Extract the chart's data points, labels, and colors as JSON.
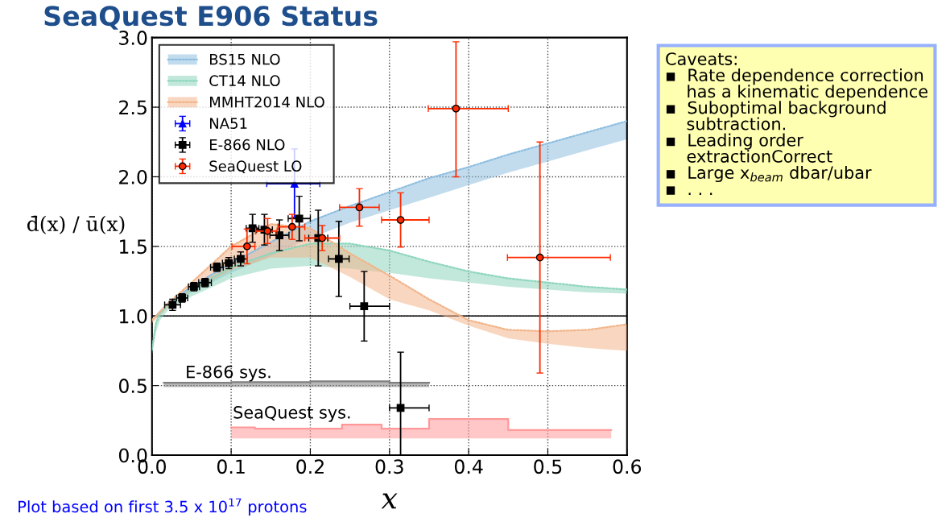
{
  "chart_data": {
    "type": "scatter",
    "title": "SeaQuest E906 Status",
    "xlabel": "x",
    "ylabel": "d̄(x) / ū(x)",
    "xlim": [
      0.0,
      0.6
    ],
    "ylim": [
      0.0,
      3.0
    ],
    "xticks": [
      {
        "value": 0.0,
        "label": "0.0"
      },
      {
        "value": 0.1,
        "label": "0.1"
      },
      {
        "value": 0.2,
        "label": "0.2"
      },
      {
        "value": 0.3,
        "label": "0.3"
      },
      {
        "value": 0.4,
        "label": "0.4"
      },
      {
        "value": 0.5,
        "label": "0.5"
      },
      {
        "value": 0.6,
        "label": "0.6"
      }
    ],
    "yticks": [
      {
        "value": 0.0,
        "label": "0.0"
      },
      {
        "value": 0.5,
        "label": "0.5"
      },
      {
        "value": 1.0,
        "label": "1.0"
      },
      {
        "value": 1.5,
        "label": "1.5"
      },
      {
        "value": 2.0,
        "label": "2.0"
      },
      {
        "value": 2.5,
        "label": "2.5"
      },
      {
        "value": 3.0,
        "label": "3.0"
      }
    ],
    "grid": true,
    "legend": "top left",
    "ref_lines": [
      {
        "axis": "y",
        "value": 1.0,
        "color": "#000000",
        "line_style": "solid"
      }
    ],
    "series": [
      {
        "type": "line",
        "name": "BS15 NLO",
        "color": "#8fbfe0",
        "line_style": "dotted",
        "x": [
          0.005,
          0.02,
          0.05,
          0.1,
          0.15,
          0.2,
          0.25,
          0.3,
          0.35,
          0.4,
          0.45,
          0.5,
          0.55,
          0.6
        ],
        "lower": [
          0.98,
          1.07,
          1.17,
          1.31,
          1.43,
          1.56,
          1.67,
          1.76,
          1.85,
          1.94,
          2.03,
          2.11,
          2.19,
          2.27
        ],
        "upper": [
          1.0,
          1.09,
          1.21,
          1.38,
          1.53,
          1.68,
          1.79,
          1.89,
          1.99,
          2.07,
          2.16,
          2.24,
          2.32,
          2.4
        ],
        "values": [
          1.0,
          1.09,
          1.21,
          1.38,
          1.53,
          1.68,
          1.79,
          1.89,
          1.99,
          2.07,
          2.16,
          2.24,
          2.32,
          2.4
        ]
      },
      {
        "type": "line",
        "name": "CT14 NLO",
        "color": "#8fd6bd",
        "line_style": "dotted",
        "x": [
          0.0,
          0.005,
          0.01,
          0.02,
          0.05,
          0.1,
          0.15,
          0.2,
          0.25,
          0.3,
          0.35,
          0.4,
          0.45,
          0.5,
          0.55,
          0.6
        ],
        "lower": [
          0.72,
          0.88,
          0.97,
          1.04,
          1.14,
          1.27,
          1.34,
          1.36,
          1.34,
          1.31,
          1.27,
          1.24,
          1.21,
          1.19,
          1.17,
          1.16
        ],
        "upper": [
          0.76,
          0.95,
          1.02,
          1.08,
          1.19,
          1.35,
          1.45,
          1.52,
          1.52,
          1.47,
          1.39,
          1.32,
          1.27,
          1.24,
          1.21,
          1.19
        ],
        "values": [
          0.76,
          0.95,
          1.02,
          1.08,
          1.19,
          1.35,
          1.45,
          1.52,
          1.52,
          1.47,
          1.39,
          1.32,
          1.27,
          1.24,
          1.21,
          1.19
        ]
      },
      {
        "type": "line",
        "name": "MMHT2014 NLO",
        "color": "#f2b58a",
        "line_style": "dotted",
        "x": [
          0.0,
          0.02,
          0.05,
          0.1,
          0.15,
          0.2,
          0.25,
          0.3,
          0.35,
          0.4,
          0.45,
          0.5,
          0.55,
          0.6
        ],
        "lower": [
          0.95,
          1.06,
          1.18,
          1.33,
          1.42,
          1.42,
          1.28,
          1.12,
          1.04,
          0.93,
          0.84,
          0.8,
          0.77,
          0.75
        ],
        "upper": [
          0.97,
          1.09,
          1.24,
          1.5,
          1.66,
          1.63,
          1.45,
          1.29,
          1.12,
          0.97,
          0.9,
          0.89,
          0.9,
          0.94
        ],
        "values": [
          0.97,
          1.09,
          1.24,
          1.5,
          1.66,
          1.63,
          1.45,
          1.29,
          1.12,
          0.97,
          0.9,
          0.89,
          0.9,
          0.94
        ]
      },
      {
        "type": "line",
        "color": "#808080",
        "line_style": "solid",
        "x": [
          0.015,
          0.1,
          0.1,
          0.2,
          0.2,
          0.3,
          0.3,
          0.35
        ],
        "lower": [
          0.49,
          0.49,
          0.49,
          0.49,
          0.49,
          0.49,
          0.49,
          0.49
        ],
        "upper": [
          0.52,
          0.52,
          0.525,
          0.525,
          0.53,
          0.53,
          0.52,
          0.52
        ],
        "values": [
          0.52,
          0.52,
          0.525,
          0.525,
          0.53,
          0.53,
          0.52,
          0.52
        ]
      },
      {
        "type": "line",
        "color": "#ff9999",
        "line_style": "solid",
        "x": [
          0.1,
          0.13,
          0.13,
          0.24,
          0.24,
          0.29,
          0.29,
          0.35,
          0.35,
          0.45,
          0.45,
          0.58
        ],
        "lower": [
          0.12,
          0.12,
          0.12,
          0.12,
          0.12,
          0.12,
          0.12,
          0.12,
          0.12,
          0.12,
          0.12,
          0.12
        ],
        "upper": [
          0.2,
          0.2,
          0.19,
          0.19,
          0.22,
          0.22,
          0.19,
          0.19,
          0.26,
          0.26,
          0.18,
          0.18
        ],
        "values": [
          0.2,
          0.2,
          0.19,
          0.19,
          0.22,
          0.22,
          0.19,
          0.19,
          0.26,
          0.26,
          0.18,
          0.18
        ]
      },
      {
        "name": "NA51",
        "color": "#0000ff",
        "marker": "triangle",
        "x": [
          0.18
        ],
        "values": [
          1.95
        ],
        "errors": [
          [
            1.71,
            2.2
          ]
        ],
        "xerrors": [
          [
            0.145,
            0.212
          ]
        ]
      },
      {
        "name": "E-866 NLO",
        "color": "#000000",
        "marker": "square",
        "x": [
          0.026,
          0.038,
          0.053,
          0.067,
          0.082,
          0.097,
          0.112,
          0.127,
          0.142,
          0.161,
          0.186,
          0.21,
          0.236,
          0.268,
          0.314
        ],
        "values": [
          1.08,
          1.13,
          1.21,
          1.24,
          1.35,
          1.38,
          1.41,
          1.63,
          1.62,
          1.58,
          1.7,
          1.56,
          1.41,
          1.07,
          0.34
        ],
        "errors": [
          0.04,
          0.03,
          0.03,
          0.03,
          0.03,
          0.04,
          0.05,
          0.1,
          0.11,
          0.11,
          0.16,
          0.2,
          0.27,
          0.25,
          [
            0.0,
            0.74
          ]
        ],
        "xerrors": [
          0.01,
          0.007,
          0.007,
          0.008,
          0.008,
          0.008,
          0.008,
          0.008,
          0.01,
          0.012,
          0.014,
          0.012,
          0.013,
          [
            0.25,
            0.3
          ],
          [
            0.3,
            0.35
          ]
        ]
      },
      {
        "name": "SeaQuest LO",
        "color": "#ff2a00",
        "marker": "circle",
        "x": [
          0.12,
          0.146,
          0.177,
          0.215,
          0.262,
          0.314,
          0.384,
          0.49
        ],
        "values": [
          1.5,
          1.61,
          1.64,
          1.56,
          1.78,
          1.69,
          2.49,
          1.42
        ],
        "errors": [
          0.125,
          0.09,
          0.09,
          0.09,
          0.135,
          0.195,
          [
            2.0,
            2.97
          ],
          0.83
        ],
        "xerrors": [
          [
            0.101,
            0.13
          ],
          [
            0.131,
            0.158
          ],
          [
            0.159,
            0.193
          ],
          [
            0.193,
            0.237
          ],
          [
            0.237,
            0.287
          ],
          [
            0.29,
            0.35
          ],
          [
            0.349,
            0.45
          ],
          [
            0.449,
            0.579
          ]
        ]
      }
    ],
    "annotations": [
      "E-866 sys.",
      "SeaQuest sys.",
      "Caveats:\n▪  Rate dependence correction\n    has a kinematic dependence\n▪  Suboptimal background\n    subtraction.\n▪  Leading order\n    extractionCorrect\n▪  Large x$_{beam}$ dbar/ubar\n▪  . . .",
      "Plot based on first 3.5 x 10$^{17}$ protons"
    ]
  }
}
